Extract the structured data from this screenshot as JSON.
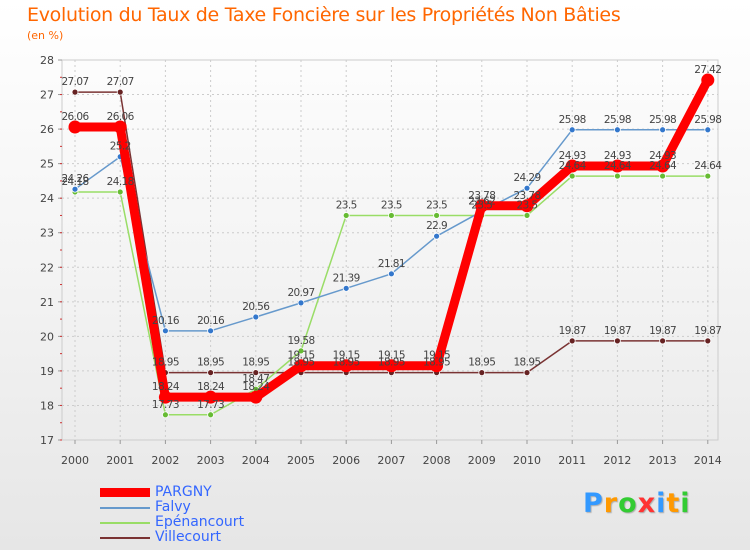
{
  "title": "Evolution du Taux de Taxe Foncière sur les Propriétés Non Bâties",
  "subtitle": "(en %)",
  "logo": {
    "text": "Proxiti",
    "letters": [
      "P",
      "r",
      "o",
      "x",
      "i",
      "t",
      "i"
    ],
    "colors": [
      "#3399ff",
      "#ff9900",
      "#33cc33",
      "#ff3333",
      "#3399ff",
      "#ff9900",
      "#33cc33"
    ]
  },
  "chart_data": {
    "type": "line",
    "title": "Evolution du Taux de Taxe Foncière sur les Propriétés Non Bâties",
    "ylabel": "(en %)",
    "xlabel": "",
    "x": [
      "2000",
      "2001",
      "2002",
      "2003",
      "2004",
      "2005",
      "2006",
      "2007",
      "2008",
      "2009",
      "2010",
      "2011",
      "2012",
      "2013",
      "2014"
    ],
    "ylim": [
      17,
      28
    ],
    "yticks": [
      "17",
      "18",
      "19",
      "20",
      "21",
      "22",
      "23",
      "24",
      "25",
      "26",
      "27",
      "28"
    ],
    "grid": true,
    "legend_position": "bottom-left",
    "series": [
      {
        "name": "PARGNY",
        "color": "#ff0000",
        "values": [
          26.06,
          26.06,
          18.24,
          18.24,
          18.24,
          19.15,
          19.15,
          19.15,
          19.15,
          23.78,
          23.78,
          24.93,
          24.93,
          24.93,
          27.42
        ],
        "labels": [
          "26.06",
          "26.06",
          "18.24",
          "18.24",
          "18.24",
          "19.15",
          "19.15",
          "19.15",
          "19.15",
          "23.78",
          "23.78",
          "24.93",
          "24.93",
          "24.93",
          "27.42"
        ]
      },
      {
        "name": "Falvy",
        "color": "#6699cc",
        "values": [
          24.26,
          25.2,
          20.16,
          20.16,
          20.56,
          20.97,
          21.39,
          21.81,
          22.9,
          23.62,
          24.29,
          25.98,
          25.98,
          25.98,
          25.98
        ],
        "labels": [
          "24.26",
          "25.2",
          "20.16",
          "20.16",
          "20.56",
          "20.97",
          "21.39",
          "21.81",
          "22.9",
          "23.62",
          "24.29",
          "25.98",
          "25.98",
          "25.98",
          "25.98"
        ]
      },
      {
        "name": "Epénancourt",
        "color": "#99dd66",
        "values": [
          24.18,
          24.18,
          17.73,
          17.73,
          18.47,
          19.58,
          23.5,
          23.5,
          23.5,
          23.5,
          23.5,
          24.64,
          24.64,
          24.64,
          24.64
        ],
        "labels": [
          "24.18",
          "24.18",
          "17.73",
          "17.73",
          "18.47",
          "19.58",
          "23.5",
          "23.5",
          "23.5",
          "23.5",
          "23.5",
          "24.64",
          "24.64",
          "24.64",
          "24.64"
        ]
      },
      {
        "name": "Villecourt",
        "color": "#7a3333",
        "values": [
          27.07,
          27.07,
          18.95,
          18.95,
          18.95,
          18.95,
          18.95,
          18.95,
          18.95,
          18.95,
          18.95,
          19.87,
          19.87,
          19.87,
          19.87
        ],
        "labels": [
          "27.07",
          "27.07",
          "18.95",
          "18.95",
          "18.95",
          "18.95",
          "18.95",
          "18.95",
          "18.95",
          "18.95",
          "18.95",
          "19.87",
          "19.87",
          "19.87",
          "19.87"
        ]
      }
    ]
  }
}
